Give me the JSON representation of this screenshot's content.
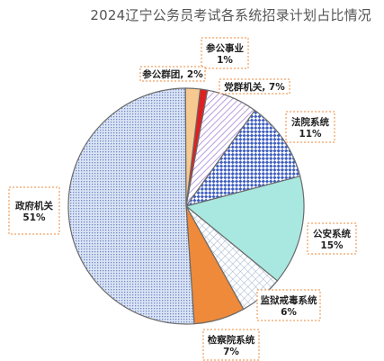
{
  "chart_data": {
    "type": "pie",
    "title": "2024辽宁公务员考试各系统招录计划占比情况",
    "slices": [
      {
        "name": "参公事业",
        "value": 1,
        "label": "1%",
        "color": "#e02020"
      },
      {
        "name": "党群机关",
        "value": 7,
        "label": "7%",
        "color": "#c9b3e6"
      },
      {
        "name": "法院系统",
        "value": 11,
        "label": "11%",
        "color": "#4a6fc9"
      },
      {
        "name": "公安系统",
        "value": 15,
        "label": "15%",
        "color": "#a8e8e0"
      },
      {
        "name": "监狱戒毒系统",
        "value": 6,
        "label": "6%",
        "color": "#b8c8e0"
      },
      {
        "name": "检察院系统",
        "value": 7,
        "label": "7%",
        "color": "#ef8a3a"
      },
      {
        "name": "政府机关",
        "value": 51,
        "label": "51%",
        "color": "#9fb4dc"
      },
      {
        "name": "参公群团",
        "value": 2,
        "label": "2%",
        "color": "#f5c990"
      }
    ],
    "slice_labels": [
      {
        "name": "参公事业",
        "text1": "参公事业",
        "text2": "1%"
      },
      {
        "name": "党群机关",
        "text1": "党群机关, 7%",
        "text2": ""
      },
      {
        "name": "法院系统",
        "text1": "法院系统",
        "text2": "11%"
      },
      {
        "name": "公安系统",
        "text1": "公安系统",
        "text2": "15%"
      },
      {
        "name": "监狱戒毒系统",
        "text1": "监狱戒毒系统",
        "text2": "6%"
      },
      {
        "name": "检察院系统",
        "text1": "检察院系统",
        "text2": "7%"
      },
      {
        "name": "政府机关",
        "text1": "政府机关",
        "text2": "51%"
      },
      {
        "name": "参公群团",
        "text1": "参公群团, 2%",
        "text2": ""
      }
    ]
  }
}
